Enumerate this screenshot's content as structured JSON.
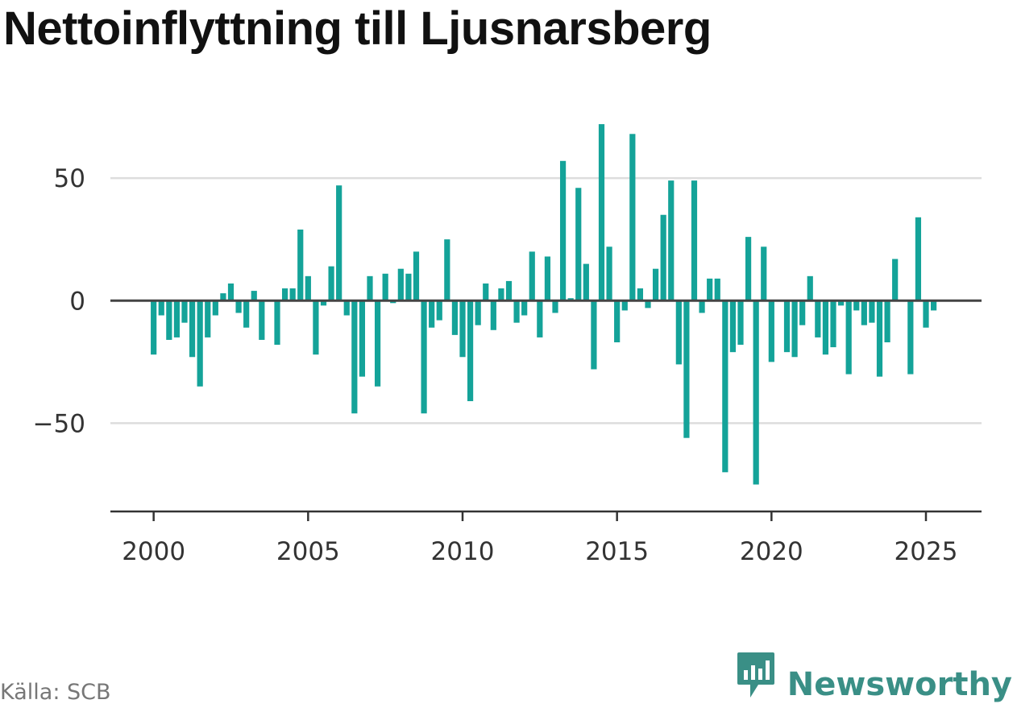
{
  "title": "Nettoinflyttning till Ljusnarsberg",
  "source": "Källa: SCB",
  "brand": {
    "name": "Newsworthy",
    "icon": "newsworthy-logo-icon"
  },
  "colors": {
    "bar": "#14a399",
    "grid": "#dddddd",
    "zero_line": "#444444",
    "axis": "#333333",
    "brand": "#3a8f86"
  },
  "chart_data": {
    "type": "bar",
    "xlabel": "",
    "ylabel": "",
    "x_ticks": [
      "2000",
      "2005",
      "2010",
      "2015",
      "2020",
      "2025"
    ],
    "y_ticks": [
      "50",
      "0",
      "−50"
    ],
    "ylim": [
      -86,
      75
    ],
    "xlim": [
      1998.6,
      2026.8
    ],
    "grid": true,
    "series": [
      {
        "x": [
          2000.0,
          2000.25,
          2000.5,
          2000.75,
          2001.0,
          2001.25,
          2001.5,
          2001.75,
          2002.0,
          2002.25,
          2002.5,
          2002.75,
          2003.0,
          2003.25,
          2003.5,
          2003.75,
          2004.0,
          2004.25,
          2004.5,
          2004.75,
          2005.0,
          2005.25,
          2005.5,
          2005.75,
          2006.0,
          2006.25,
          2006.5,
          2006.75,
          2007.0,
          2007.25,
          2007.5,
          2007.75,
          2008.0,
          2008.25,
          2008.5,
          2008.75,
          2009.0,
          2009.25,
          2009.5,
          2009.75,
          2010.0,
          2010.25,
          2010.5,
          2010.75,
          2011.0,
          2011.25,
          2011.5,
          2011.75,
          2012.0,
          2012.25,
          2012.5,
          2012.75,
          2013.0,
          2013.25,
          2013.5,
          2013.75,
          2014.0,
          2014.25,
          2014.5,
          2014.75,
          2015.0,
          2015.25,
          2015.5,
          2015.75,
          2016.0,
          2016.25,
          2016.5,
          2016.75,
          2017.0,
          2017.25,
          2017.5,
          2017.75,
          2018.0,
          2018.25,
          2018.5,
          2018.75,
          2019.0,
          2019.25,
          2019.5,
          2019.75,
          2020.0,
          2020.25,
          2020.5,
          2020.75,
          2021.0,
          2021.25,
          2021.5,
          2021.75,
          2022.0,
          2022.25,
          2022.5,
          2022.75,
          2023.0,
          2023.25,
          2023.5,
          2023.75,
          2024.0,
          2024.25,
          2024.5,
          2024.75,
          2025.0,
          2025.25
        ],
        "values": [
          -22,
          -6,
          -16,
          -15,
          -9,
          -23,
          -35,
          -15,
          -6,
          3,
          7,
          -5,
          -11,
          4,
          -16,
          0,
          -18,
          5,
          5,
          29,
          10,
          -22,
          -2,
          14,
          47,
          -6,
          -46,
          -31,
          10,
          -35,
          11,
          -1,
          13,
          11,
          20,
          -46,
          -11,
          -8,
          25,
          -14,
          -23,
          -41,
          -10,
          7,
          -12,
          5,
          8,
          -9,
          -6,
          20,
          -15,
          18,
          -5,
          57,
          1,
          46,
          15,
          -28,
          72,
          22,
          -17,
          -4,
          68,
          5,
          -3,
          13,
          35,
          49,
          -26,
          -56,
          49,
          -5,
          9,
          9,
          -70,
          -21,
          -18,
          26,
          -75,
          22,
          -25,
          0,
          -21,
          -23,
          -10,
          10,
          -15,
          -22,
          -19,
          -2,
          -30,
          -4,
          -10,
          -9,
          -31,
          -17,
          17,
          0,
          -30,
          34,
          -11,
          -4
        ]
      }
    ]
  }
}
